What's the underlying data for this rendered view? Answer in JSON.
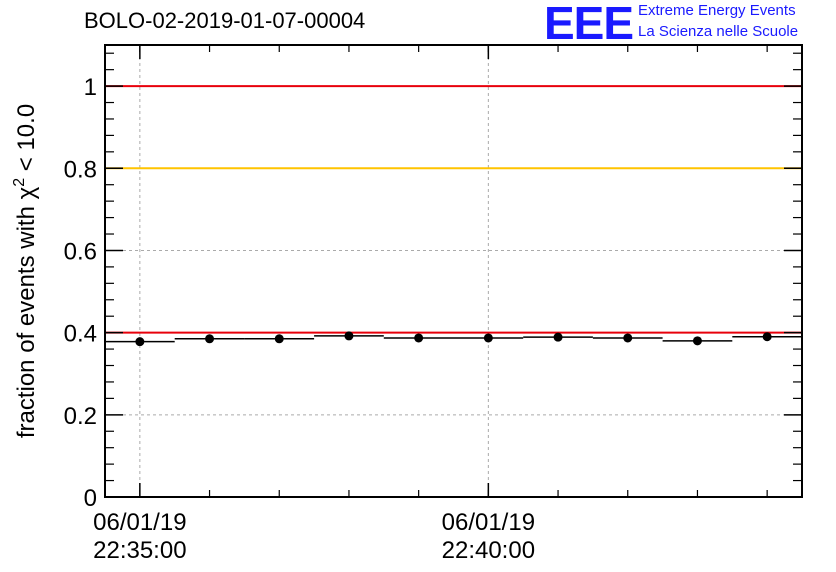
{
  "title": "BOLO-02-2019-01-07-00004",
  "logo": {
    "mark": "EEE",
    "line1": "Extreme Energy Events",
    "line2": "La Scienza nelle Scuole",
    "color": "#1a1aff"
  },
  "chart_data": {
    "type": "scatter",
    "ylabel": "fraction of events with χ² < 10.0",
    "ylabel_parts": {
      "prefix": "fraction of events with ",
      "symbol": "χ",
      "sup": "2",
      "suffix": " < 10.0"
    },
    "ylim": [
      0,
      1.1
    ],
    "y_ticks": [
      "0",
      "0.2",
      "0.4",
      "0.6",
      "0.8",
      "1"
    ],
    "y_tick_values": [
      0,
      0.2,
      0.4,
      0.6,
      0.8,
      1.0
    ],
    "xlim": [
      "2019-01-06T22:34:30",
      "2019-01-06T22:44:30"
    ],
    "x_ticks": [
      {
        "date": "06/01/19",
        "time": "22:35:00",
        "t": "2019-01-06T22:35:00"
      },
      {
        "date": "06/01/19",
        "time": "22:40:00",
        "t": "2019-01-06T22:40:00"
      }
    ],
    "grid": true,
    "reference_lines": [
      {
        "y": 1.0,
        "color": "#e8000b"
      },
      {
        "y": 0.8,
        "color": "#ffc400"
      },
      {
        "y": 0.4,
        "color": "#e8000b"
      }
    ],
    "series": [
      {
        "bin_width_minutes": 1,
        "points": [
          {
            "x": "2019-01-06T22:35:00",
            "y": 0.378
          },
          {
            "x": "2019-01-06T22:36:00",
            "y": 0.385
          },
          {
            "x": "2019-01-06T22:37:00",
            "y": 0.385
          },
          {
            "x": "2019-01-06T22:38:00",
            "y": 0.392
          },
          {
            "x": "2019-01-06T22:39:00",
            "y": 0.387
          },
          {
            "x": "2019-01-06T22:40:00",
            "y": 0.387
          },
          {
            "x": "2019-01-06T22:41:00",
            "y": 0.389
          },
          {
            "x": "2019-01-06T22:42:00",
            "y": 0.387
          },
          {
            "x": "2019-01-06T22:43:00",
            "y": 0.38
          },
          {
            "x": "2019-01-06T22:44:00",
            "y": 0.39
          }
        ]
      }
    ]
  }
}
